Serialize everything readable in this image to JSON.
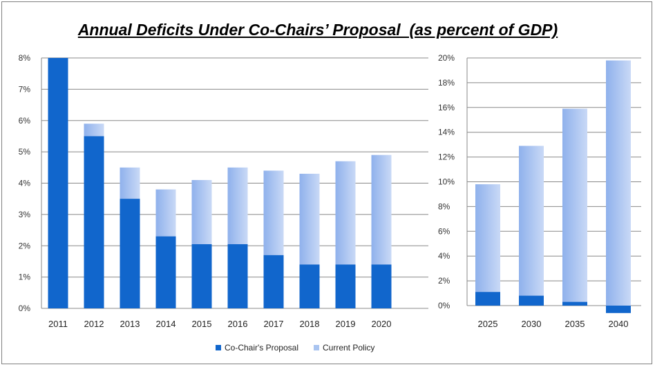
{
  "title": "Annual Deficits Under Co-Chairs’ Proposal  (as percent of GDP)",
  "legend": {
    "proposal_label": "Co-Chair's Proposal",
    "policy_label": "Current Policy"
  },
  "colors": {
    "proposal": "#1166cc",
    "policy": "#a9c4f0",
    "grid": "#888888"
  },
  "chart_data": [
    {
      "type": "bar",
      "stacked": "overlay",
      "categories": [
        "2011",
        "2012",
        "2013",
        "2014",
        "2015",
        "2016",
        "2017",
        "2018",
        "2019",
        "2020"
      ],
      "series": [
        {
          "name": "Co-Chair's Proposal",
          "values": [
            8.0,
            5.5,
            3.5,
            2.3,
            2.05,
            2.05,
            1.7,
            1.4,
            1.4,
            1.4
          ]
        },
        {
          "name": "Current Policy",
          "values": [
            8.0,
            5.9,
            4.5,
            3.8,
            4.1,
            4.5,
            4.4,
            4.3,
            4.7,
            4.9
          ]
        }
      ],
      "yticks": [
        "0%",
        "1%",
        "2%",
        "3%",
        "4%",
        "5%",
        "6%",
        "7%",
        "8%"
      ],
      "ylim": [
        0,
        8
      ],
      "grid": true,
      "legend_position": "bottom"
    },
    {
      "type": "bar",
      "stacked": "overlay",
      "categories": [
        "2025",
        "2030",
        "2035",
        "2040"
      ],
      "series": [
        {
          "name": "Co-Chair's Proposal",
          "values": [
            1.1,
            0.8,
            0.3,
            -0.6
          ]
        },
        {
          "name": "Current Policy",
          "values": [
            9.8,
            12.9,
            15.9,
            19.8
          ]
        }
      ],
      "yticks": [
        "0%",
        "2%",
        "4%",
        "6%",
        "8%",
        "10%",
        "12%",
        "14%",
        "16%",
        "18%",
        "20%"
      ],
      "ylim": [
        0,
        20
      ],
      "grid": true
    }
  ]
}
